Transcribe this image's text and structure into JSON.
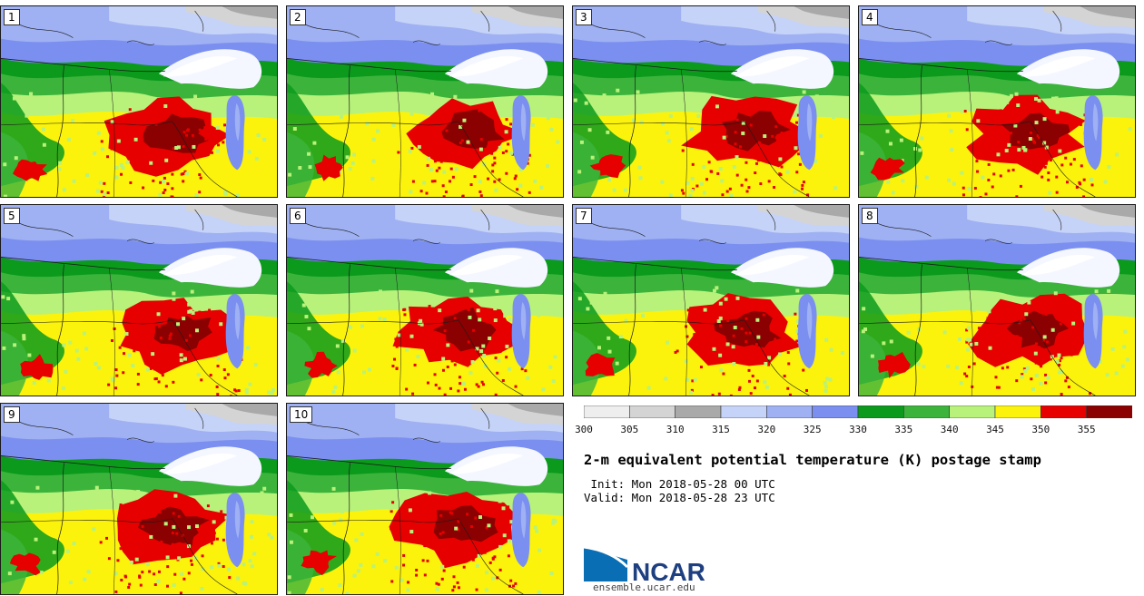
{
  "panels": [
    {
      "label": "1"
    },
    {
      "label": "2"
    },
    {
      "label": "3"
    },
    {
      "label": "4"
    },
    {
      "label": "5"
    },
    {
      "label": "6"
    },
    {
      "label": "7"
    },
    {
      "label": "8"
    },
    {
      "label": "9"
    },
    {
      "label": "10"
    }
  ],
  "colorbar": {
    "colors": [
      "#eeeeee",
      "#d4d4d4",
      "#a9a9a9",
      "#c6d3f8",
      "#9fb1f3",
      "#7b8ff0",
      "#0b9a1c",
      "#3cb43c",
      "#b8f27a",
      "#fbf30c",
      "#e60000",
      "#8b0000"
    ],
    "tick_labels": [
      "300",
      "305",
      "310",
      "315",
      "320",
      "325",
      "330",
      "335",
      "340",
      "345",
      "350",
      "355"
    ]
  },
  "title": "2-m equivalent potential temperature (K) postage stamp",
  "init_text": " Init: Mon 2018-05-28 00 UTC",
  "valid_text": "Valid: Mon 2018-05-28 23 UTC",
  "logo": {
    "text": "NCAR",
    "colors": {
      "navy": "#1e3f80",
      "blue": "#0a6eb4"
    }
  },
  "site": "ensemble.ucar.edu"
}
